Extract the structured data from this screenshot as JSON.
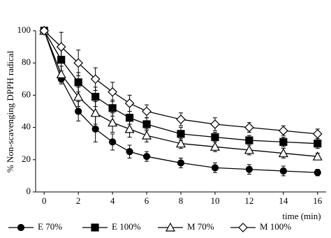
{
  "chart_data": {
    "type": "line",
    "y_label": "% Non-scavenging DPPH radical",
    "x_label": "time (min)",
    "x": [
      0,
      1,
      2,
      3,
      4,
      5,
      6,
      8,
      10,
      12,
      14,
      16
    ],
    "series": [
      {
        "name": "E 70%",
        "color": "#000000",
        "marker": "circle",
        "filled": true,
        "values": [
          100,
          70,
          50,
          39,
          31,
          25,
          22,
          18,
          15,
          14,
          13,
          12
        ],
        "errors": [
          0,
          3,
          6,
          8,
          5,
          4,
          3,
          3,
          3,
          3,
          3,
          2
        ]
      },
      {
        "name": "E 100%",
        "color": "#000000",
        "marker": "square",
        "filled": true,
        "values": [
          100,
          82,
          68,
          59,
          52,
          46,
          42,
          36,
          34,
          32,
          31,
          30
        ],
        "errors": [
          0,
          7,
          6,
          6,
          5,
          4,
          4,
          4,
          3,
          3,
          3,
          3
        ]
      },
      {
        "name": "M 70%",
        "color": "#000000",
        "marker": "triangle",
        "filled": false,
        "values": [
          100,
          73,
          59,
          49,
          43,
          39,
          35,
          30,
          28,
          26,
          24,
          22
        ],
        "errors": [
          0,
          5,
          6,
          7,
          6,
          5,
          4,
          3,
          3,
          3,
          3,
          2
        ]
      },
      {
        "name": "M 100%",
        "color": "#000000",
        "marker": "diamond",
        "filled": false,
        "values": [
          100,
          90,
          80,
          70,
          62,
          55,
          50,
          45,
          42,
          40,
          38,
          36
        ],
        "errors": [
          0,
          9,
          8,
          7,
          6,
          5,
          4,
          4,
          4,
          3,
          3,
          3
        ]
      }
    ],
    "xlim": [
      -0.5,
      16.5
    ],
    "xticks": [
      0,
      2,
      4,
      6,
      8,
      10,
      12,
      14,
      16
    ],
    "ylim": [
      0,
      100
    ],
    "yticks": [
      0,
      20,
      40,
      60,
      80,
      100
    ],
    "grid": false,
    "legend": "bottom"
  }
}
